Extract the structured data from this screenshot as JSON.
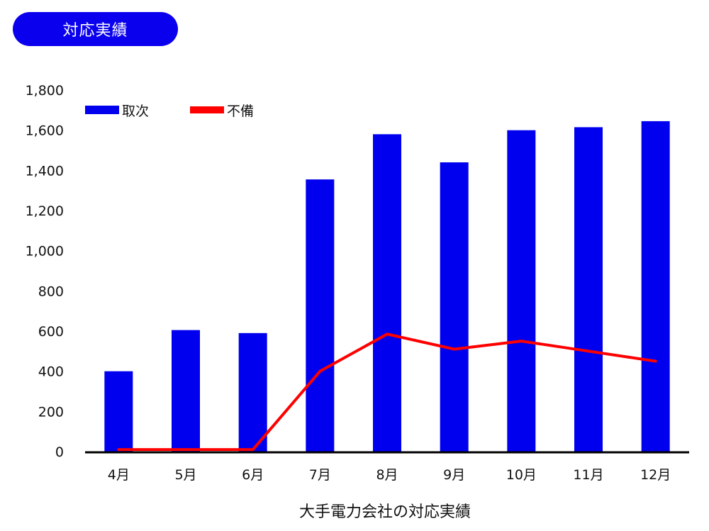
{
  "header": {
    "badge_label": "対応実績"
  },
  "colors": {
    "badge_bg": "#0a00ee",
    "bar": "#0000ee",
    "line": "#ff0000",
    "axis": "#000000"
  },
  "chart_data": {
    "type": "bar",
    "title": "",
    "xlabel": "大手電力会社の対応実績",
    "ylabel": "",
    "ylim": [
      0,
      1800
    ],
    "yticks": [
      "0",
      "200",
      "400",
      "600",
      "800",
      "1,000",
      "1,200",
      "1,400",
      "1,600",
      "1,800"
    ],
    "ytick_values": [
      0,
      200,
      400,
      600,
      800,
      1000,
      1200,
      1400,
      1600,
      1800
    ],
    "categories": [
      "4月",
      "5月",
      "6月",
      "7月",
      "8月",
      "9月",
      "10月",
      "11月",
      "12月"
    ],
    "grid": false,
    "legend": "top-left",
    "series": [
      {
        "name": "取次",
        "type": "bar",
        "color": "#0000ee",
        "values": [
          400,
          605,
          590,
          1355,
          1580,
          1440,
          1600,
          1615,
          1645
        ]
      },
      {
        "name": "不備",
        "type": "line",
        "color": "#ff0000",
        "values": [
          10,
          10,
          10,
          400,
          585,
          510,
          550,
          500,
          450
        ]
      }
    ]
  }
}
